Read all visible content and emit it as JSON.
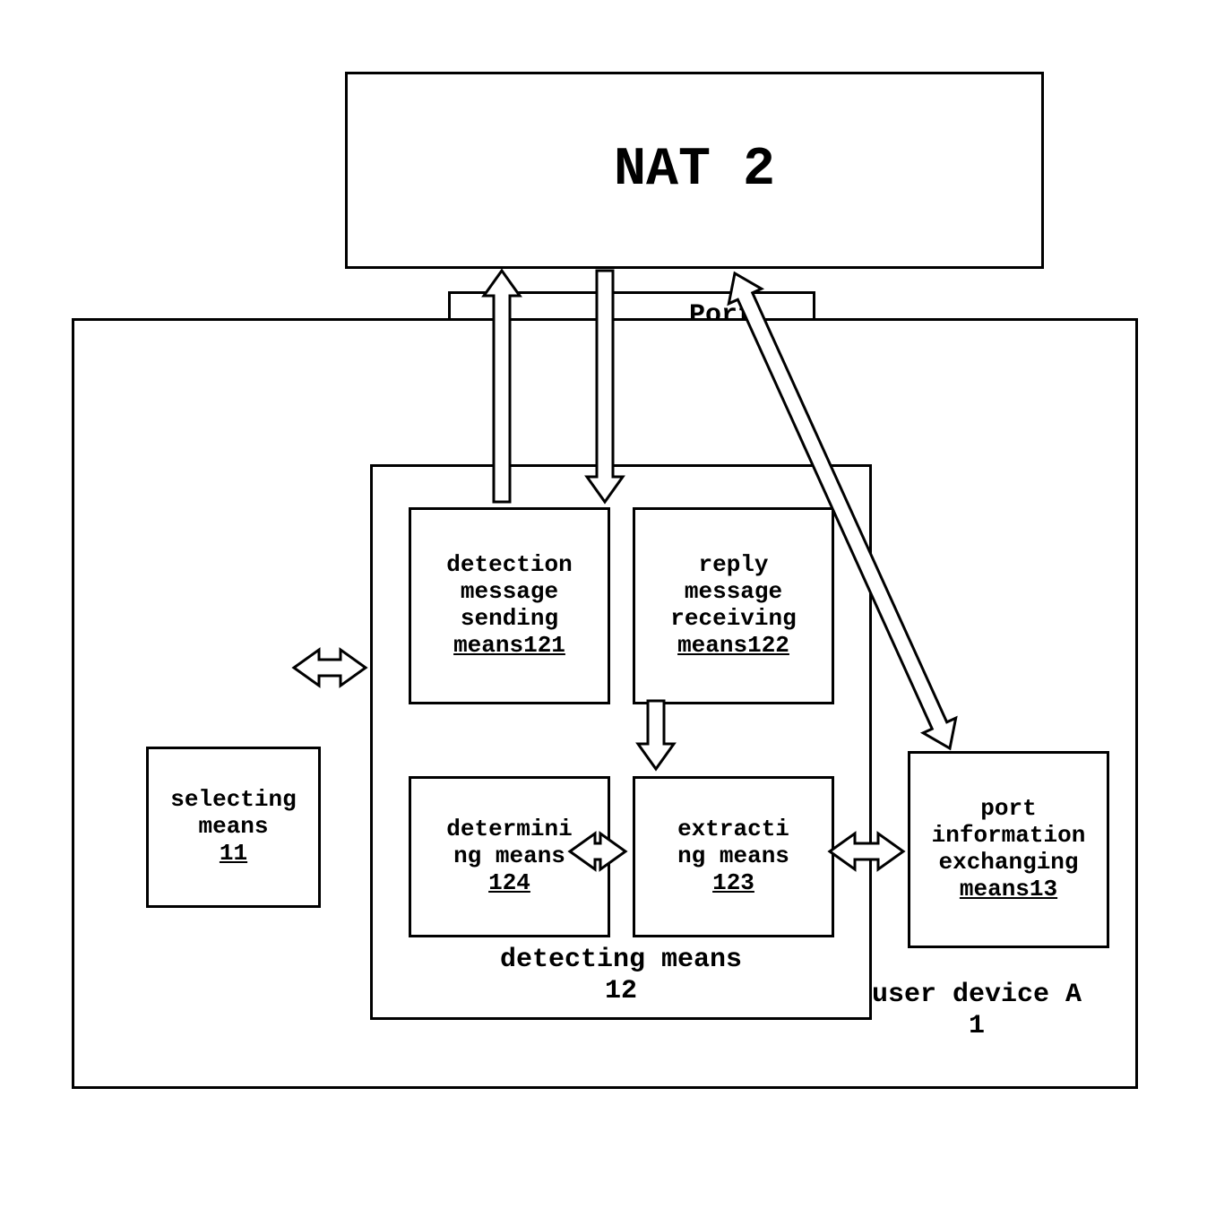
{
  "diagram": {
    "type": "block-diagram",
    "background_color": "#ffffff",
    "stroke_color": "#000000",
    "stroke_width": 3,
    "font_family": "Courier New",
    "nat": {
      "label": "NAT 2",
      "fontsize": 60
    },
    "port": {
      "label": "Port",
      "fontsize": 30
    },
    "device": {
      "label_line1": "user device A",
      "label_line2": "1",
      "fontsize": 30
    },
    "detecting": {
      "label": "detecting means  12",
      "fontsize": 30
    },
    "selecting": {
      "line1": "selecting",
      "line2": "means",
      "line3": "11",
      "fontsize": 26
    },
    "box121": {
      "line1": "detection",
      "line2": "message",
      "line3": "sending",
      "line4": "means121",
      "fontsize": 26
    },
    "box122": {
      "line1": "reply",
      "line2": "message",
      "line3": "receiving",
      "line4": "means122",
      "fontsize": 26
    },
    "box124": {
      "line1": "determini",
      "line2": "ng means",
      "line3": "124",
      "fontsize": 26
    },
    "box123": {
      "line1": "extracti",
      "line2": "ng means",
      "line3": "123",
      "fontsize": 26
    },
    "box13": {
      "line1": "port",
      "line2": "information",
      "line3": "exchanging",
      "line4": "means13",
      "fontsize": 26
    },
    "arrows": {
      "shaft_width": 18,
      "head_width": 40,
      "head_length": 28,
      "fill": "#ffffff",
      "stroke": "#000000",
      "stroke_width": 3
    }
  }
}
